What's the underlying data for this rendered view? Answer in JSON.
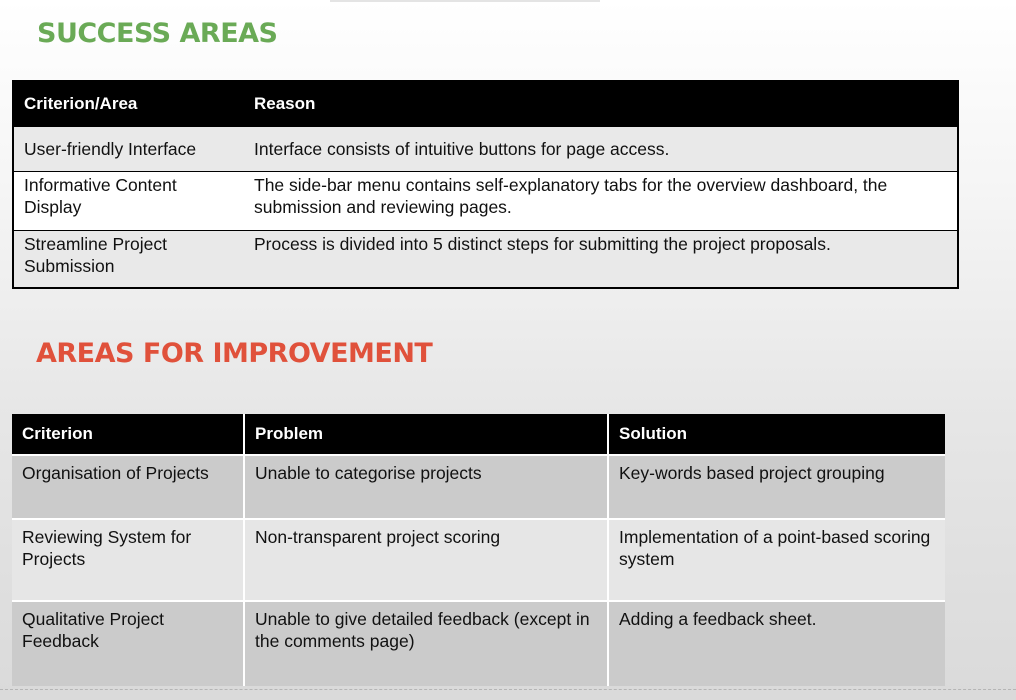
{
  "success": {
    "heading": "SUCCESS AREAS",
    "headers": [
      "Criterion/Area",
      "Reason"
    ],
    "rows": [
      [
        "User-friendly Interface",
        "Interface consists of intuitive buttons for page access."
      ],
      [
        "Informative Content Display",
        "The side-bar menu contains self-explanatory tabs for the overview dashboard, the submission and reviewing pages."
      ],
      [
        "Streamline Project Submission",
        "Process is divided into 5 distinct steps for submitting the project proposals."
      ]
    ]
  },
  "improvement": {
    "heading": "AREAS FOR IMPROVEMENT",
    "headers": [
      "Criterion",
      "Problem",
      "Solution"
    ],
    "rows": [
      [
        "Organisation of Projects",
        "Unable to categorise projects",
        "Key-words based project grouping"
      ],
      [
        "Reviewing System for Projects",
        "Non-transparent project scoring",
        "Implementation of a point-based scoring system"
      ],
      [
        "Qualitative Project Feedback",
        "Unable to give detailed feedback (except in the comments page)",
        "Adding a feedback sheet."
      ]
    ]
  },
  "colors": {
    "success_heading": "#6aaa56",
    "improvement_heading": "#e0513b",
    "header_bg": "#000000"
  }
}
